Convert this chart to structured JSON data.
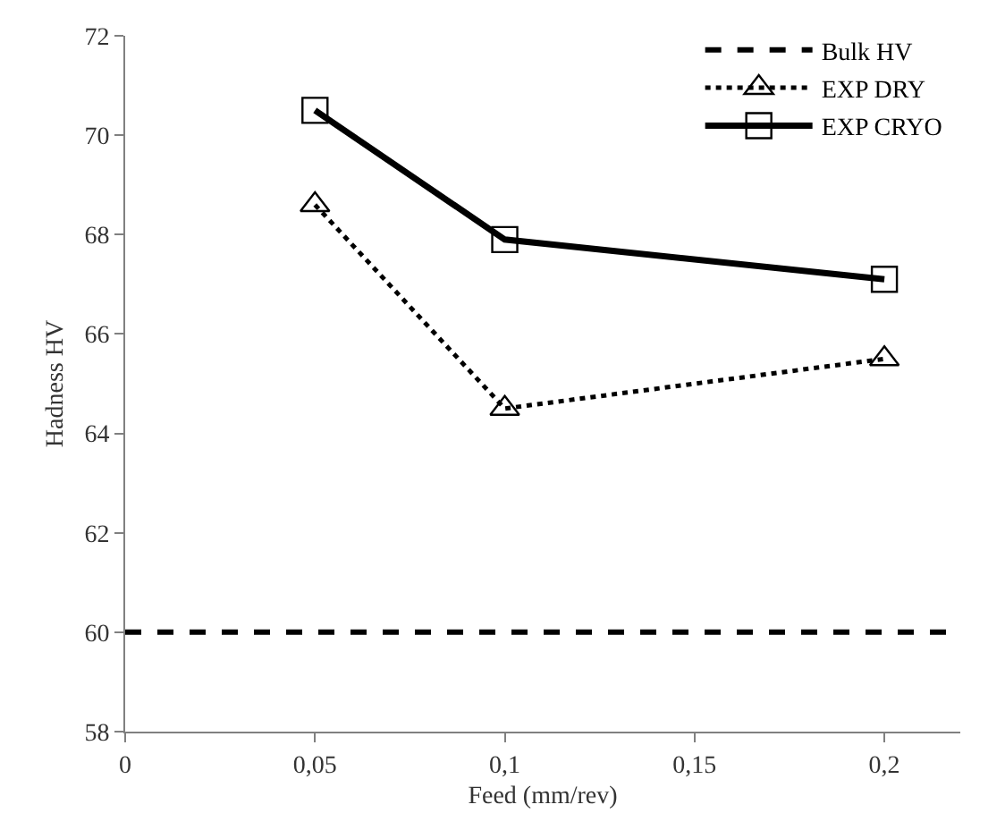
{
  "chart_data": {
    "type": "line",
    "xlabel": "Feed (mm/rev)",
    "ylabel": "Hadness HV",
    "xlim": [
      0,
      0.22
    ],
    "xticks": [
      0,
      {
        "value": 0.05,
        "label": "0,05"
      },
      {
        "value": 0.1,
        "label": "0,1"
      },
      {
        "value": 0.15,
        "label": "0,15"
      },
      {
        "value": 0.2,
        "label": "0,2"
      }
    ],
    "ylim": [
      58,
      72
    ],
    "yticks": [
      58,
      60,
      62,
      64,
      66,
      68,
      70,
      72
    ],
    "legend": "top right",
    "series": [
      {
        "name": "Bulk HV",
        "color": "#000000",
        "x": [
          0,
          0.22
        ],
        "values": [
          60,
          60
        ],
        "line_style": "dashed",
        "marker": "none"
      },
      {
        "name": "EXP DRY",
        "color": "#000000",
        "x": [
          0.05,
          0.1,
          0.2
        ],
        "values": [
          68.6,
          64.5,
          65.5
        ],
        "line_style": "dotted",
        "marker": "triangle"
      },
      {
        "name": "EXP CRYO",
        "color": "#000000",
        "x": [
          0.05,
          0.1,
          0.2
        ],
        "values": [
          70.5,
          67.9,
          67.1
        ],
        "line_style": "solid",
        "marker": "square"
      }
    ]
  }
}
